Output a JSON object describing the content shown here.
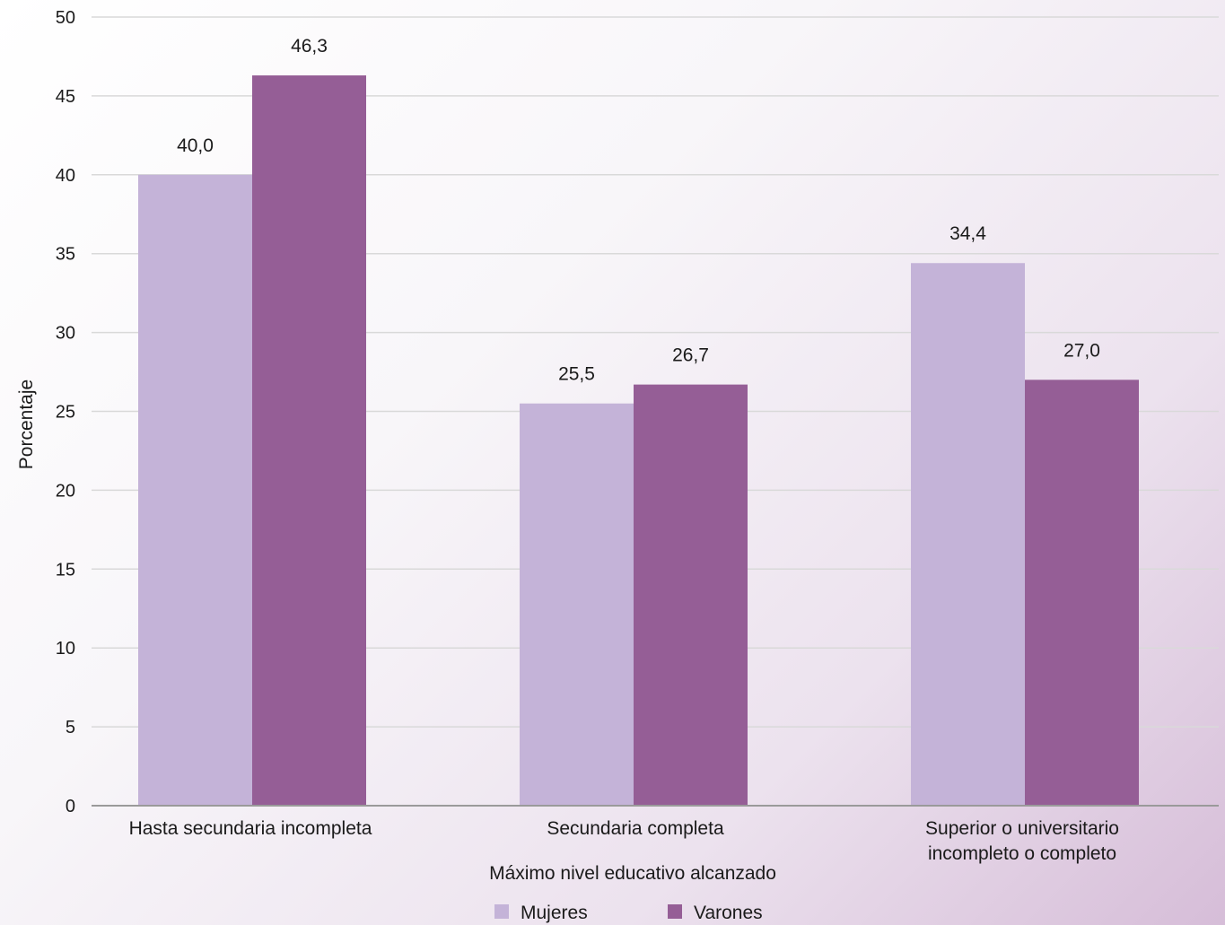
{
  "chart_data": {
    "type": "bar",
    "categories": [
      [
        "Hasta secundaria incompleta"
      ],
      [
        "Secundaria completa"
      ],
      [
        "Superior o universitario",
        "incompleto o completo"
      ]
    ],
    "series": [
      {
        "name": "Mujeres",
        "color": "#c4b3d8",
        "values": [
          40.0,
          25.5,
          34.4
        ],
        "labels": [
          "40,0",
          "25,5",
          "34,4"
        ]
      },
      {
        "name": "Varones",
        "color": "#955e96",
        "values": [
          46.3,
          26.7,
          27.0
        ],
        "labels": [
          "46,3",
          "26,7",
          "27,0"
        ]
      }
    ],
    "xlabel": "Máximo nivel educativo alcanzado",
    "ylabel": "Porcentaje",
    "ylim": [
      0,
      50
    ],
    "yticks": [
      0,
      5,
      10,
      15,
      20,
      25,
      30,
      35,
      40,
      45,
      50
    ],
    "grid": true,
    "legend_position": "bottom-center"
  }
}
